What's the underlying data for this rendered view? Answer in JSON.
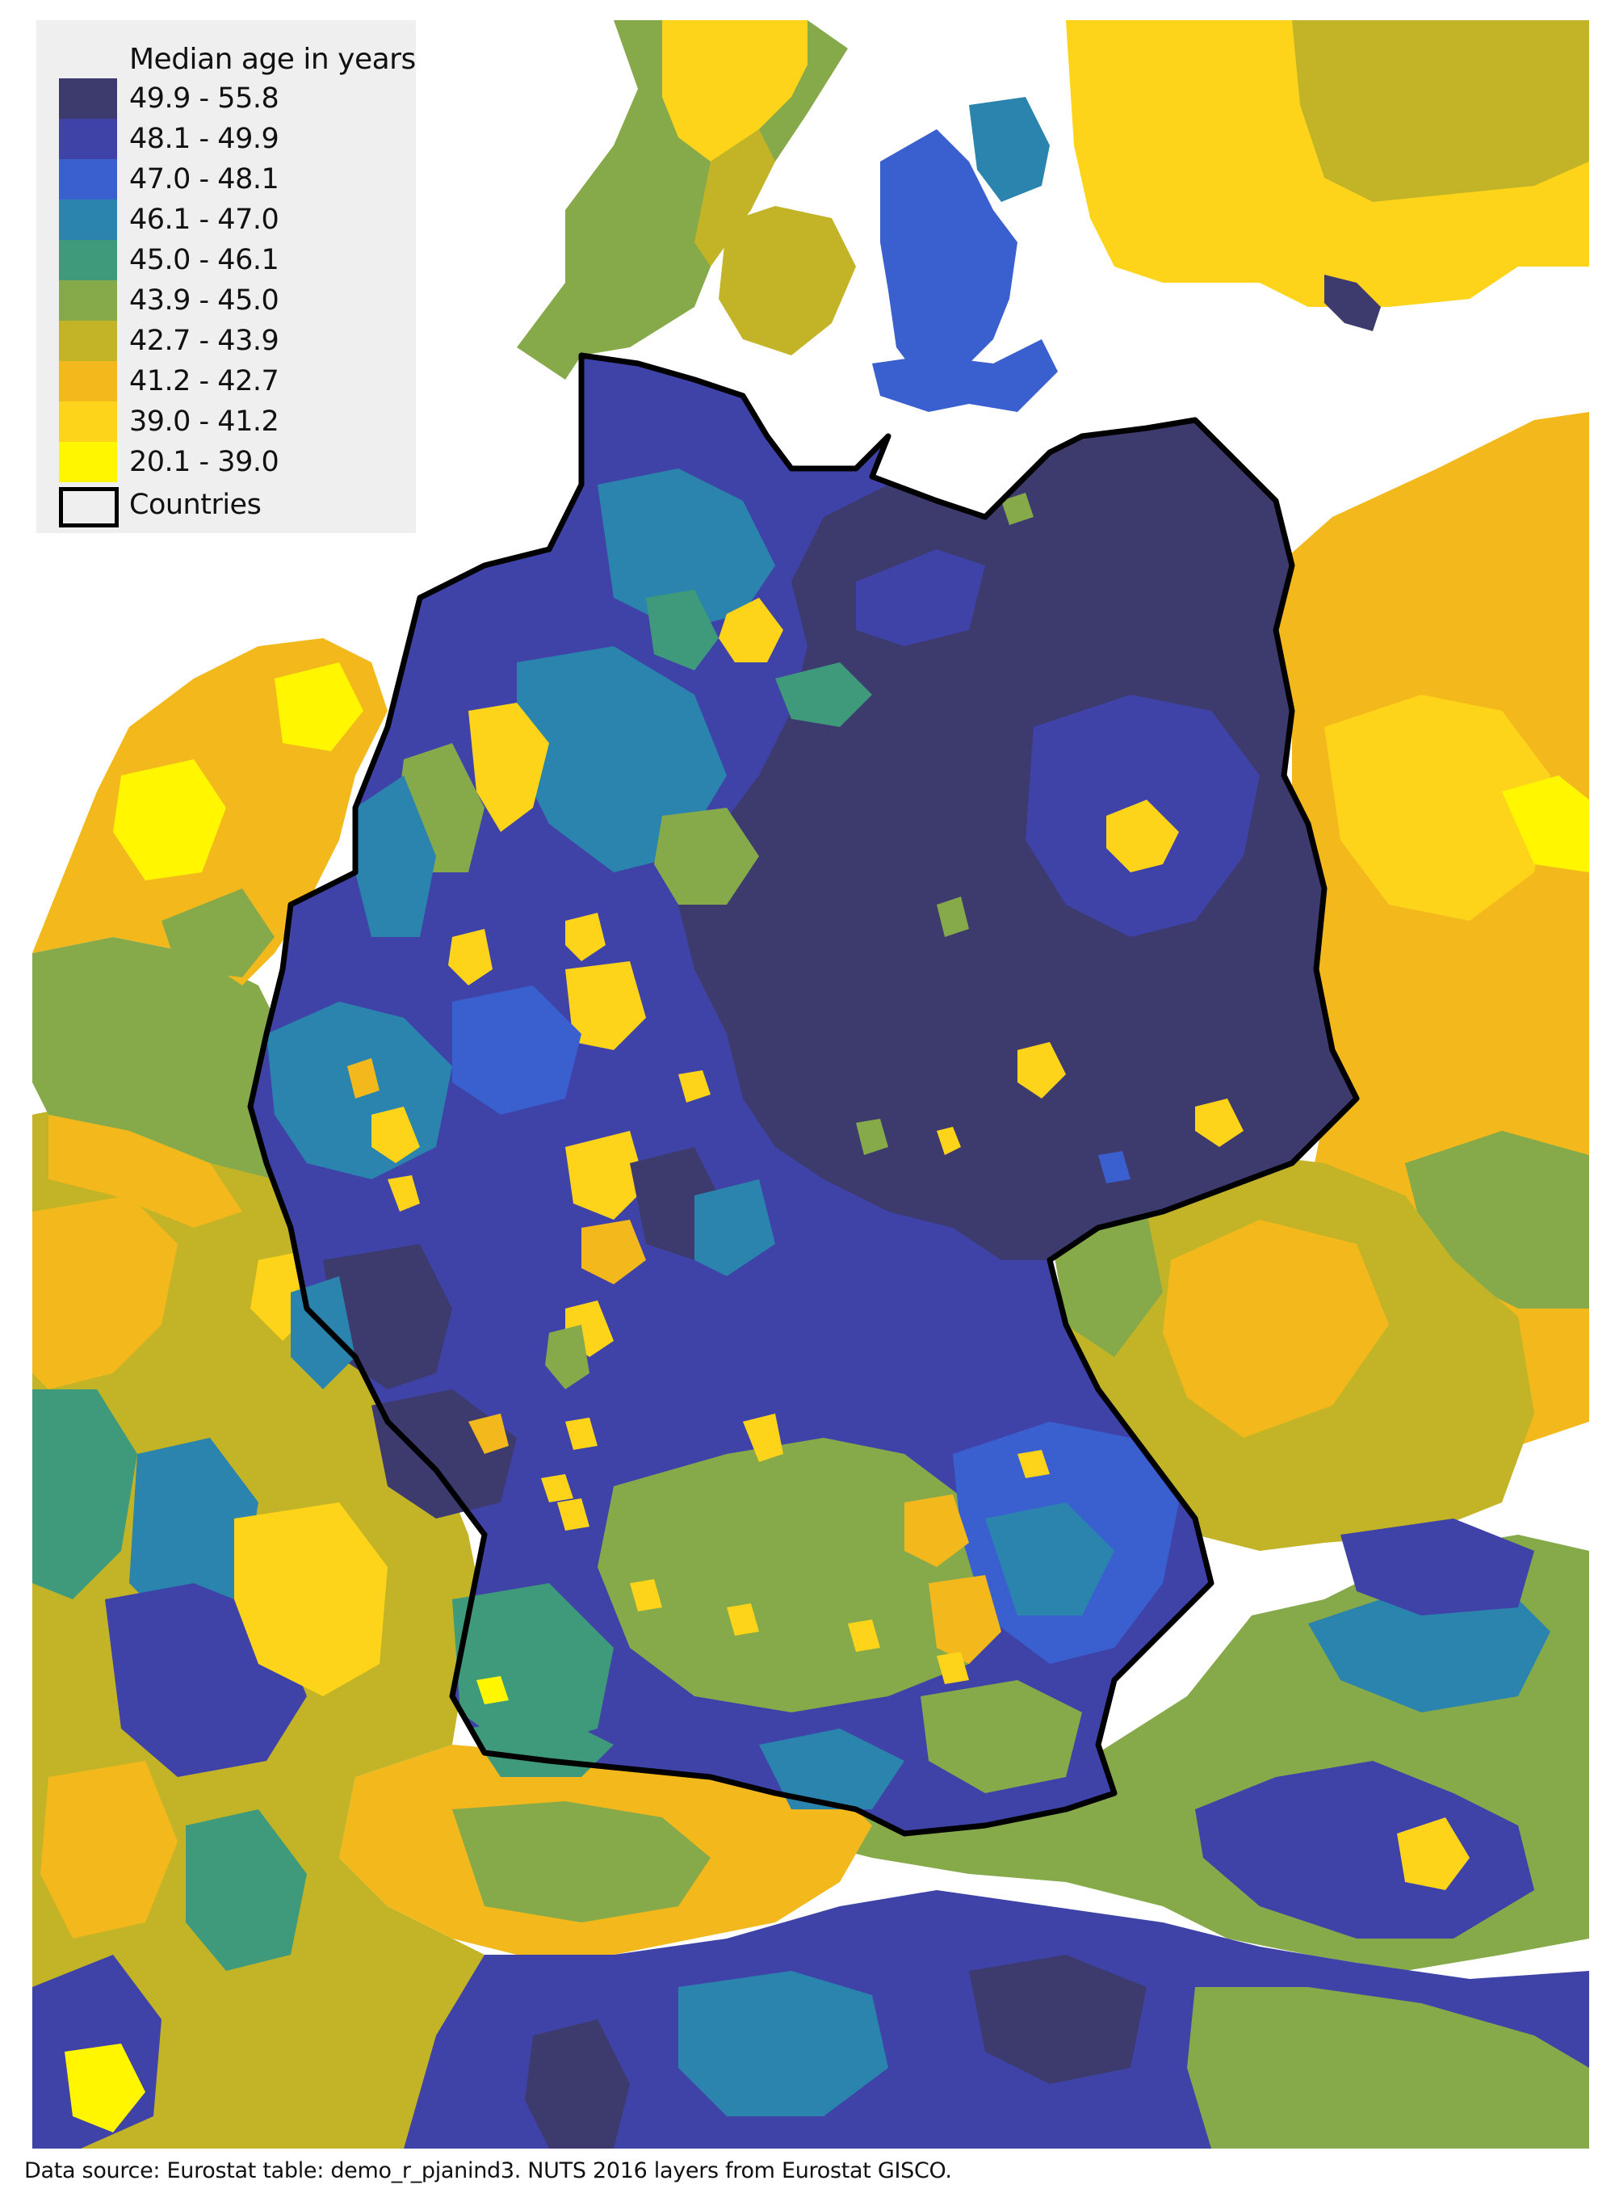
{
  "legend": {
    "title": "Median age in years",
    "classes": [
      {
        "label": "49.9 - 55.8",
        "color": "#3d3a6e"
      },
      {
        "label": "48.1 - 49.9",
        "color": "#3f43a7"
      },
      {
        "label": "47.0 - 48.1",
        "color": "#3a5fce"
      },
      {
        "label": "46.1 - 47.0",
        "color": "#2a84ad"
      },
      {
        "label": "45.0 - 46.1",
        "color": "#3e9a7a"
      },
      {
        "label": "43.9 - 45.0",
        "color": "#86a94a"
      },
      {
        "label": "42.7 - 43.9",
        "color": "#c2b426"
      },
      {
        "label": "41.2 - 42.7",
        "color": "#f2b81c"
      },
      {
        "label": "39.0 - 41.2",
        "color": "#fed41a"
      },
      {
        "label": "20.1 - 39.0",
        "color": "#fff600"
      }
    ],
    "countries_label": "Countries"
  },
  "source_note": "Data source: Eurostat table: demo_r_pjanind3. NUTS 2016 layers from Eurostat GISCO."
}
